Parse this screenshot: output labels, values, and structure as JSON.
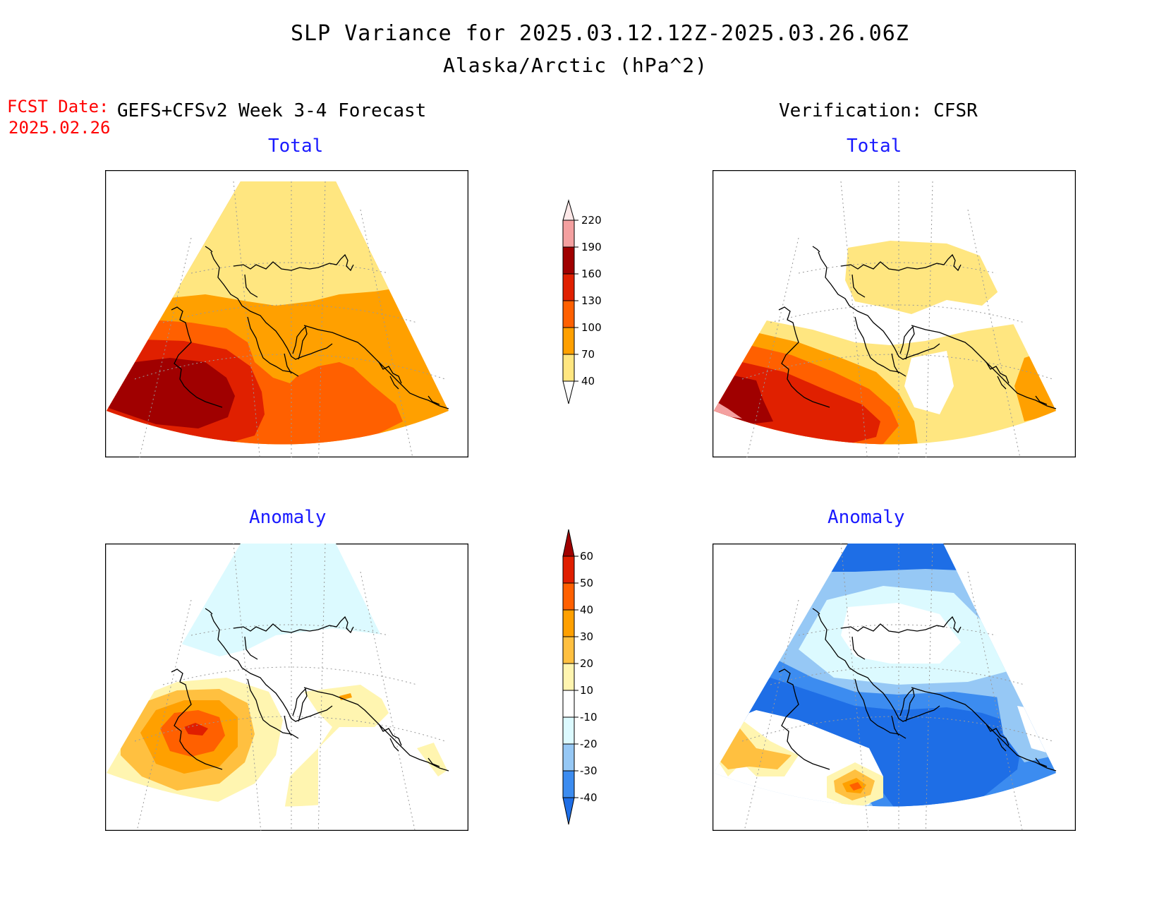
{
  "title": "SLP Variance for 2025.03.12.12Z-2025.03.26.06Z",
  "subtitle": "Alaska/Arctic (hPa^2)",
  "fcst_date_label": "FCST Date:",
  "fcst_date": "2025.02.26",
  "left_header": "GEFS+CFSv2 Week 3-4 Forecast",
  "right_header": "Verification: CFSR",
  "panels": {
    "forecast_total": "Total",
    "verif_total": "Total",
    "forecast_anomaly": "Anomaly",
    "verif_anomaly": "Anomaly"
  },
  "colors": {
    "total": [
      "#ffe680",
      "#ffa000",
      "#ff6000",
      "#e02000",
      "#a00000",
      "#f4a0a0",
      "#fde8e8"
    ],
    "anomaly": [
      "#1e6ee6",
      "#3c8cf0",
      "#96c8f5",
      "#dcfaff",
      "#ffffff",
      "#fff5b0",
      "#ffc040",
      "#ffa000",
      "#ff6000",
      "#e01e00",
      "#a00000"
    ]
  },
  "total_scale": {
    "levels": [
      "40",
      "70",
      "100",
      "130",
      "160",
      "190",
      "220"
    ]
  },
  "anomaly_scale": {
    "levels": [
      "-40",
      "-30",
      "-20",
      "-10",
      "10",
      "20",
      "30",
      "40",
      "50",
      "60"
    ]
  }
}
